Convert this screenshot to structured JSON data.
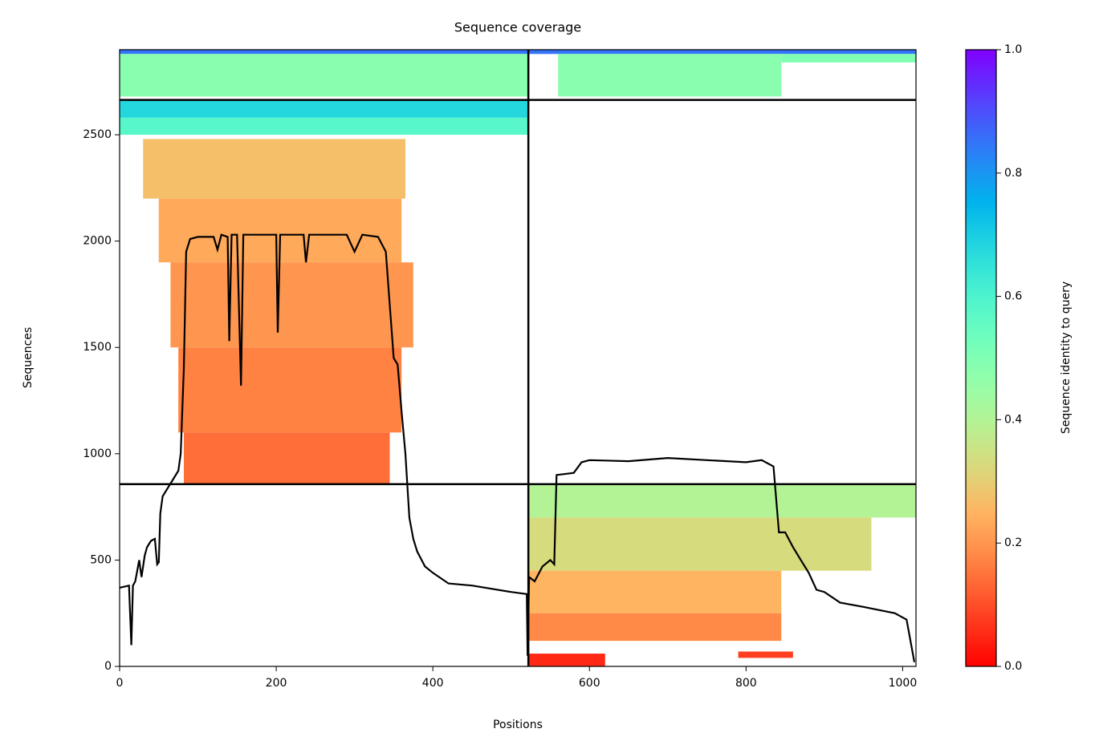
{
  "chart_data": {
    "type": "coverage",
    "title": "Sequence coverage",
    "x_label": "Positions",
    "y_label": "Sequences",
    "xlim": [
      0,
      1017
    ],
    "ylim": [
      0,
      2900
    ],
    "xticks": [
      0,
      200,
      400,
      600,
      800,
      1000
    ],
    "yticks": [
      0,
      500,
      1000,
      1500,
      2000,
      2500
    ],
    "colormap": "rainbow_r",
    "colorbar": {
      "label": "Sequence identity to query",
      "lim": [
        0,
        1
      ],
      "ticks": [
        {
          "value": 0,
          "label": "0.0"
        },
        0.2,
        0.4,
        0.6,
        0.8,
        {
          "value": 1,
          "label": "1.0"
        }
      ]
    },
    "blocks": [
      {
        "x": [
          0,
          522
        ],
        "y": [
          2880,
          2900
        ],
        "identity": 0.85
      },
      {
        "x": [
          0,
          522
        ],
        "y": [
          2680,
          2880
        ],
        "identity": 0.48
      },
      {
        "x": [
          522,
          1017
        ],
        "y": [
          2880,
          2900
        ],
        "identity": 0.85
      },
      {
        "x": [
          560,
          845
        ],
        "y": [
          2680,
          2880
        ],
        "identity": 0.48
      },
      {
        "x": [
          845,
          1017
        ],
        "y": [
          2840,
          2880
        ],
        "identity": 0.5
      },
      {
        "x": [
          0,
          522
        ],
        "y": [
          2580,
          2664
        ],
        "identity": 0.68
      },
      {
        "x": [
          0,
          522
        ],
        "y": [
          2500,
          2580
        ],
        "identity": 0.58
      },
      {
        "x": [
          30,
          365
        ],
        "y": [
          2200,
          2480
        ],
        "identity": 0.27
      },
      {
        "x": [
          50,
          360
        ],
        "y": [
          1900,
          2200
        ],
        "identity": 0.23
      },
      {
        "x": [
          65,
          375
        ],
        "y": [
          1500,
          1900
        ],
        "identity": 0.2
      },
      {
        "x": [
          75,
          360
        ],
        "y": [
          1100,
          1500
        ],
        "identity": 0.17
      },
      {
        "x": [
          82,
          345
        ],
        "y": [
          857,
          1100
        ],
        "identity": 0.14
      },
      {
        "x": [
          522,
          1017
        ],
        "y": [
          700,
          857
        ],
        "identity": 0.4
      },
      {
        "x": [
          522,
          960
        ],
        "y": [
          450,
          700
        ],
        "identity": 0.33
      },
      {
        "x": [
          522,
          845
        ],
        "y": [
          250,
          450
        ],
        "identity": 0.25
      },
      {
        "x": [
          522,
          845
        ],
        "y": [
          120,
          250
        ],
        "identity": 0.18
      },
      {
        "x": [
          522,
          620
        ],
        "y": [
          0,
          60
        ],
        "identity": 0.05
      },
      {
        "x": [
          790,
          860
        ],
        "y": [
          40,
          70
        ],
        "identity": 0.08
      }
    ],
    "dividers": {
      "x": [
        522
      ],
      "y": [
        857,
        2664
      ]
    },
    "coverage": {
      "color": "#000000",
      "x": [
        0,
        12,
        15,
        17,
        20,
        25,
        28,
        32,
        35,
        40,
        45,
        48,
        50,
        52,
        55,
        65,
        75,
        78,
        82,
        85,
        90,
        100,
        120,
        125,
        130,
        138,
        140,
        143,
        150,
        155,
        158,
        200,
        202,
        205,
        235,
        238,
        242,
        290,
        300,
        310,
        330,
        340,
        345,
        350,
        355,
        360,
        365,
        370,
        375,
        380,
        390,
        400,
        420,
        450,
        500,
        520,
        521,
        523,
        530,
        540,
        550,
        555,
        558,
        580,
        590,
        600,
        650,
        700,
        750,
        800,
        820,
        835,
        842,
        850,
        860,
        870,
        880,
        890,
        900,
        920,
        950,
        990,
        1005,
        1015
      ],
      "values": [
        370,
        380,
        100,
        380,
        400,
        500,
        420,
        520,
        560,
        590,
        600,
        480,
        490,
        720,
        800,
        860,
        920,
        1000,
        1400,
        1950,
        2010,
        2020,
        2020,
        1960,
        2030,
        2020,
        1530,
        2030,
        2030,
        1320,
        2030,
        2030,
        1570,
        2030,
        2030,
        1900,
        2030,
        2030,
        1950,
        2030,
        2020,
        1950,
        1700,
        1450,
        1420,
        1200,
        1000,
        700,
        600,
        540,
        470,
        440,
        390,
        380,
        350,
        340,
        50,
        420,
        400,
        470,
        500,
        480,
        900,
        910,
        960,
        970,
        965,
        980,
        970,
        960,
        970,
        940,
        630,
        630,
        560,
        500,
        440,
        360,
        350,
        300,
        280,
        250,
        220,
        20
      ]
    }
  }
}
